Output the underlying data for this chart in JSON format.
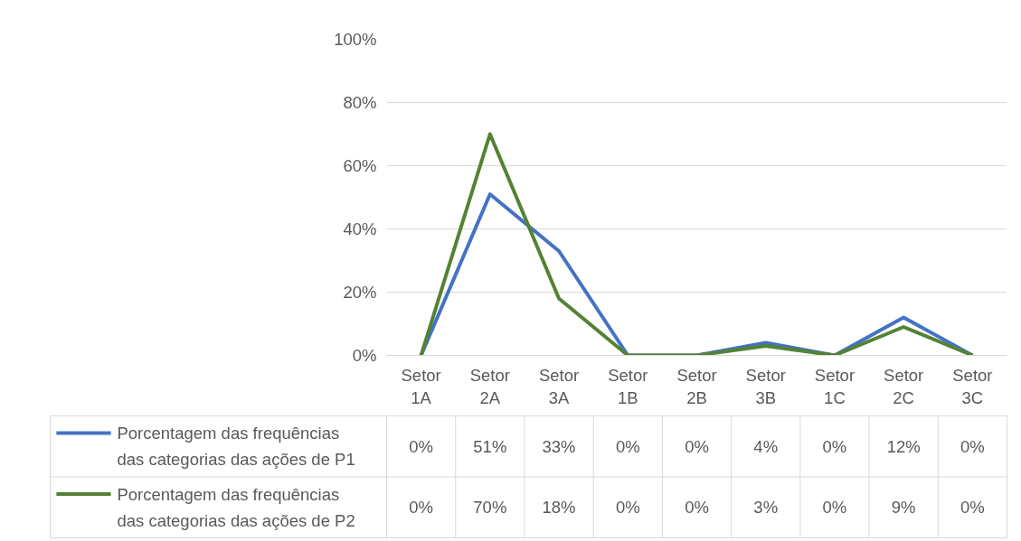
{
  "chart_data": {
    "type": "line",
    "categories": [
      "Setor 1A",
      "Setor 2A",
      "Setor 3A",
      "Setor 1B",
      "Setor 2B",
      "Setor 3B",
      "Setor 1C",
      "Setor 2C",
      "Setor 3C"
    ],
    "series": [
      {
        "name": "Porcentagem das frequências das categorias das ações de P1",
        "color": "#4472c4",
        "values": [
          0,
          51,
          33,
          0,
          0,
          4,
          0,
          12,
          0
        ],
        "value_labels": [
          "0%",
          "51%",
          "33%",
          "0%",
          "0%",
          "4%",
          "0%",
          "12%",
          "0%"
        ]
      },
      {
        "name": "Porcentagem das frequências das categorias das ações de P2",
        "color": "#548235",
        "values": [
          0,
          70,
          18,
          0,
          0,
          3,
          0,
          9,
          0
        ],
        "value_labels": [
          "0%",
          "70%",
          "18%",
          "0%",
          "0%",
          "3%",
          "0%",
          "9%",
          "0%"
        ]
      }
    ],
    "ylim": [
      0,
      100
    ],
    "yticks": [
      {
        "value": 0,
        "label": "0%"
      },
      {
        "value": 20,
        "label": "20%"
      },
      {
        "value": 40,
        "label": "40%"
      },
      {
        "value": 60,
        "label": "60%"
      },
      {
        "value": 80,
        "label": "80%"
      },
      {
        "value": 100,
        "label": "100%"
      }
    ],
    "grid": "y",
    "legend": "bottom left",
    "marker": "none",
    "line_style": "solid"
  }
}
